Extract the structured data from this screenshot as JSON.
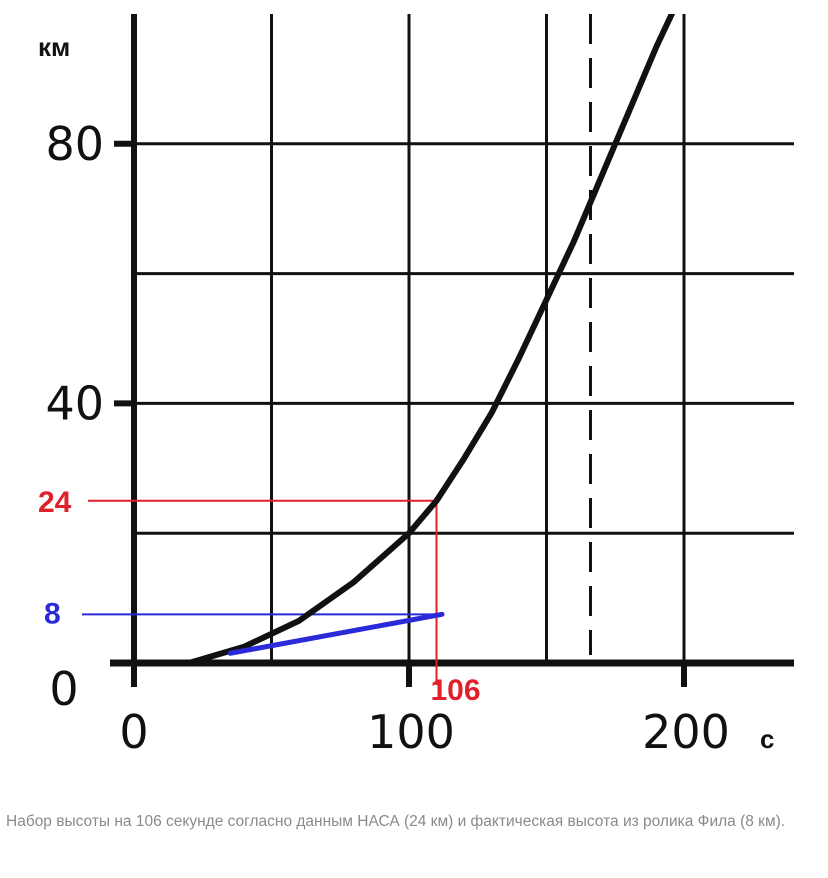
{
  "chart_data": {
    "type": "line",
    "xlabel": "",
    "ylabel": "",
    "x_unit": "c",
    "y_unit": "км",
    "xlim": [
      0,
      240
    ],
    "ylim": [
      0,
      100
    ],
    "x_ticks": [
      0,
      100,
      200
    ],
    "x_tick_labels": [
      "0",
      "100",
      "200"
    ],
    "y_ticks": [
      0,
      40,
      80
    ],
    "y_tick_labels": [
      "0",
      "40",
      "80"
    ],
    "grid": true,
    "x_grid": [
      50,
      100,
      150,
      200
    ],
    "y_grid": [
      20,
      40,
      60,
      80
    ],
    "series": [
      {
        "x": [
          20,
          40,
          60,
          80,
          100,
          110,
          120,
          130,
          140,
          150,
          160,
          170,
          180,
          190,
          200
        ],
        "y": [
          0,
          2.5,
          6.5,
          12.5,
          20,
          25,
          31.5,
          38.5,
          47,
          56,
          65,
          75,
          85,
          95,
          104
        ]
      }
    ],
    "dashed_vertical_x": 166,
    "annotations": {
      "red": {
        "x": 110,
        "y": 25,
        "x_label": "106",
        "y_label": "24",
        "color": "#e0202a"
      },
      "blue": {
        "x_start": 35,
        "y_start": 1.5,
        "x_end": 112,
        "y_end": 7.5,
        "y_label": "8",
        "color": "#2a2ad8"
      }
    }
  },
  "caption": "Набор высоты на 106 секунде согласно данным НАСА (24 км) и фактическая высота из ролика Фила (8 км)."
}
